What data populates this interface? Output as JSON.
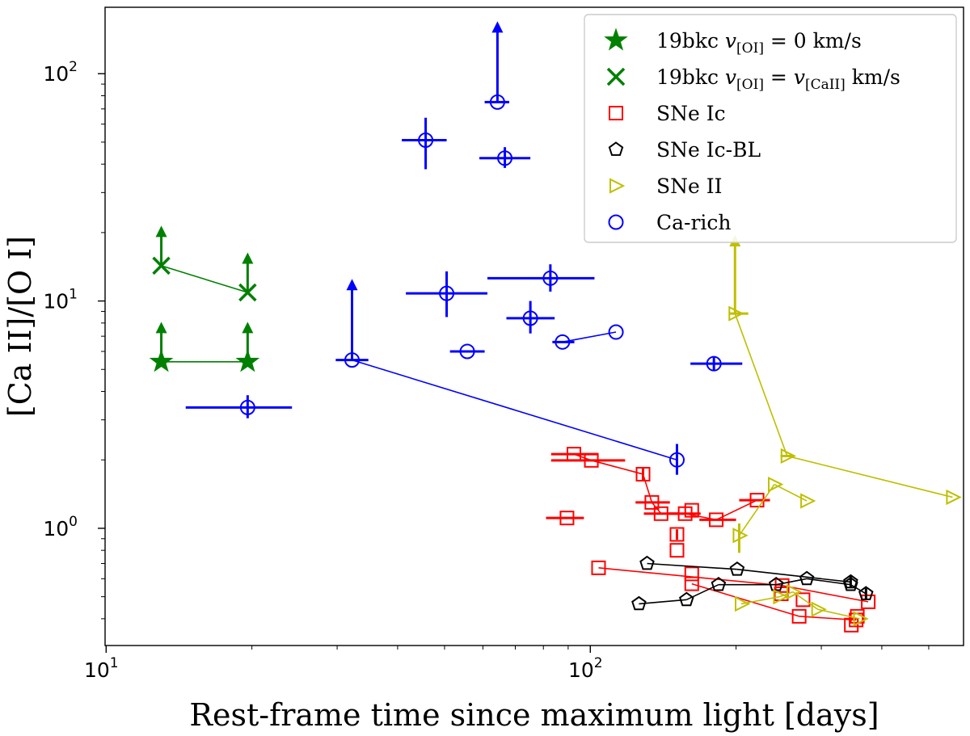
{
  "chart_data": {
    "type": "scatter",
    "title": "",
    "xlabel": "Rest-frame time since maximum light [days]",
    "ylabel": "[Ca II]/[O I]",
    "xscale": "log",
    "yscale": "log",
    "xlim": [
      9.95,
      590
    ],
    "ylim": [
      0.305,
      196
    ],
    "x_ticks": [
      {
        "value": 10,
        "base": "10",
        "exp": "1"
      },
      {
        "value": 100,
        "base": "10",
        "exp": "2"
      }
    ],
    "y_ticks": [
      {
        "value": 1,
        "base": "10",
        "exp": "0"
      },
      {
        "value": 10,
        "base": "10",
        "exp": "1"
      },
      {
        "value": 100,
        "base": "10",
        "exp": "2"
      }
    ],
    "legend_position": "top-right",
    "legend": [
      {
        "marker": "star",
        "color": "#008000",
        "label": "19bkc",
        "math": "v[OI] = 0 km/s"
      },
      {
        "marker": "x",
        "color": "#008000",
        "label": "19bkc",
        "math": "v[OI] = v[CaII] km/s"
      },
      {
        "marker": "square",
        "color": "#ff0000",
        "label": "SNe Ic"
      },
      {
        "marker": "pentagon",
        "color": "#000000",
        "label": "SNe Ic-BL"
      },
      {
        "marker": "triangle-right",
        "color": "#bfbf00",
        "label": "SNe II"
      },
      {
        "marker": "circle",
        "color": "#0000ff",
        "label": "Ca-rich"
      }
    ],
    "series": [
      {
        "name": "19bkc v[OI]=0 km/s",
        "marker": "star",
        "color": "#008000",
        "lower_limit": true,
        "points": [
          {
            "x": 13.0,
            "y": 5.4
          },
          {
            "x": 19.6,
            "y": 5.4
          }
        ],
        "lines": [
          [
            0,
            1
          ]
        ]
      },
      {
        "name": "19bkc v[OI]=v[CaII] km/s",
        "marker": "x",
        "color": "#008000",
        "lower_limit": true,
        "points": [
          {
            "x": 13.0,
            "y": 14.3
          },
          {
            "x": 19.6,
            "y": 10.9
          }
        ],
        "lines": [
          [
            0,
            1
          ]
        ]
      },
      {
        "name": "Ca-rich",
        "marker": "circle",
        "color": "#0000ff",
        "points": [
          {
            "x": 19.6,
            "y": 3.4,
            "xlo": 14.6,
            "xhi": 24.2,
            "ylo": 3.05,
            "yhi": 3.85
          },
          {
            "x": 32.2,
            "y": 5.5,
            "xlo": 29.8,
            "xhi": 34.8,
            "lim": 12.5
          },
          {
            "x": 45.7,
            "y": 51,
            "xlo": 40.8,
            "xhi": 50.5,
            "ylo": 38,
            "yhi": 64
          },
          {
            "x": 50.5,
            "y": 10.8,
            "xlo": 41.6,
            "xhi": 61.3,
            "ylo": 8.5,
            "yhi": 13.5
          },
          {
            "x": 55.7,
            "y": 6.0,
            "xlo": 51.3,
            "xhi": 60.5
          },
          {
            "x": 64.3,
            "y": 75,
            "xlo": 60.5,
            "xhi": 68.0,
            "lim": 170
          },
          {
            "x": 66.6,
            "y": 42.5,
            "xlo": 59.0,
            "xhi": 75.2,
            "ylo": 38.5,
            "yhi": 47.5
          },
          {
            "x": 75.2,
            "y": 8.4,
            "xlo": 67.1,
            "xhi": 84.4,
            "ylo": 7.2,
            "yhi": 10.0
          },
          {
            "x": 82.7,
            "y": 12.6,
            "xlo": 61.3,
            "xhi": 102,
            "ylo": 11.0,
            "yhi": 14.5
          },
          {
            "x": 87.6,
            "y": 6.6,
            "xlo": 83.5,
            "xhi": 92.7
          },
          {
            "x": 113,
            "y": 7.3
          },
          {
            "x": 151,
            "y": 2.0,
            "ylo": 1.72,
            "yhi": 2.35
          },
          {
            "x": 180,
            "y": 5.3,
            "xlo": 161,
            "xhi": 206,
            "ylo": 4.95,
            "yhi": 5.65
          }
        ],
        "lines": [
          [
            9,
            10
          ],
          [
            1,
            11
          ]
        ]
      },
      {
        "name": "SNe Ic",
        "marker": "square",
        "color": "#ff0000",
        "points": [
          {
            "x": 92.5,
            "y": 2.12,
            "xlo": 83.0,
            "xhi": 104
          },
          {
            "x": 100.5,
            "y": 1.99,
            "xlo": 83.0,
            "xhi": 118
          },
          {
            "x": 89.5,
            "y": 1.11,
            "xlo": 81.0,
            "xhi": 97.0
          },
          {
            "x": 128.5,
            "y": 1.73,
            "ylo": 1.62,
            "yhi": 1.84
          },
          {
            "x": 134,
            "y": 1.3,
            "xlo": 124,
            "xhi": 146
          },
          {
            "x": 140,
            "y": 1.16,
            "xlo": 129,
            "xhi": 152
          },
          {
            "x": 157,
            "y": 1.16,
            "xlo": 144,
            "xhi": 169
          },
          {
            "x": 162,
            "y": 1.2
          },
          {
            "x": 182,
            "y": 1.09,
            "xlo": 168,
            "xhi": 200
          },
          {
            "x": 221,
            "y": 1.33,
            "xlo": 203,
            "xhi": 235
          },
          {
            "x": 151,
            "y": 0.94,
            "ylo": 0.89,
            "yhi": 0.99
          },
          {
            "x": 151,
            "y": 0.8
          },
          {
            "x": 104,
            "y": 0.67
          },
          {
            "x": 162,
            "y": 0.63
          },
          {
            "x": 162,
            "y": 0.57
          },
          {
            "x": 249,
            "y": 0.56
          },
          {
            "x": 248,
            "y": 0.515
          },
          {
            "x": 275,
            "y": 0.485
          },
          {
            "x": 375,
            "y": 0.475
          },
          {
            "x": 270,
            "y": 0.41
          },
          {
            "x": 354,
            "y": 0.395
          },
          {
            "x": 346,
            "y": 0.375
          },
          {
            "x": 356,
            "y": 0.41
          }
        ],
        "lines": [
          [
            0,
            1
          ],
          [
            1,
            3
          ],
          [
            3,
            4
          ],
          [
            4,
            5
          ],
          [
            5,
            6
          ],
          [
            6,
            8
          ],
          [
            8,
            9
          ],
          [
            12,
            15
          ],
          [
            15,
            18
          ],
          [
            14,
            19
          ],
          [
            19,
            20
          ]
        ]
      },
      {
        "name": "SNe Ic-BL",
        "marker": "pentagon",
        "color": "#000000",
        "points": [
          {
            "x": 131,
            "y": 0.7
          },
          {
            "x": 201,
            "y": 0.66
          },
          {
            "x": 345,
            "y": 0.58,
            "ylo": 0.55,
            "yhi": 0.62
          },
          {
            "x": 126,
            "y": 0.465
          },
          {
            "x": 158,
            "y": 0.485
          },
          {
            "x": 184,
            "y": 0.565
          },
          {
            "x": 242,
            "y": 0.565
          },
          {
            "x": 280,
            "y": 0.6
          },
          {
            "x": 345,
            "y": 0.565
          },
          {
            "x": 371,
            "y": 0.515,
            "ylo": 0.49,
            "yhi": 0.545
          }
        ],
        "lines": [
          [
            0,
            1
          ],
          [
            1,
            2
          ],
          [
            3,
            4
          ],
          [
            4,
            5
          ],
          [
            5,
            6
          ],
          [
            6,
            7
          ],
          [
            7,
            8
          ],
          [
            8,
            9
          ]
        ]
      },
      {
        "name": "SNe II",
        "marker": "triangle-right",
        "color": "#bfbf00",
        "points": [
          {
            "x": 199,
            "y": 8.8,
            "xlo": 194,
            "xhi": 212,
            "lim": 19.5
          },
          {
            "x": 255,
            "y": 2.08,
            "xlo": 247,
            "xhi": 262
          },
          {
            "x": 560,
            "y": 1.37
          },
          {
            "x": 240,
            "y": 1.56
          },
          {
            "x": 280,
            "y": 1.32
          },
          {
            "x": 203,
            "y": 0.93,
            "ylo": 0.78,
            "yhi": 1.05
          },
          {
            "x": 205,
            "y": 0.465
          },
          {
            "x": 246,
            "y": 0.5
          },
          {
            "x": 262,
            "y": 0.525
          },
          {
            "x": 295,
            "y": 0.44
          },
          {
            "x": 360,
            "y": 0.4
          }
        ],
        "lines": [
          [
            0,
            1
          ],
          [
            1,
            2
          ],
          [
            3,
            4
          ],
          [
            3,
            5
          ],
          [
            6,
            7
          ],
          [
            7,
            8
          ],
          [
            8,
            9
          ],
          [
            9,
            10
          ]
        ]
      }
    ]
  }
}
